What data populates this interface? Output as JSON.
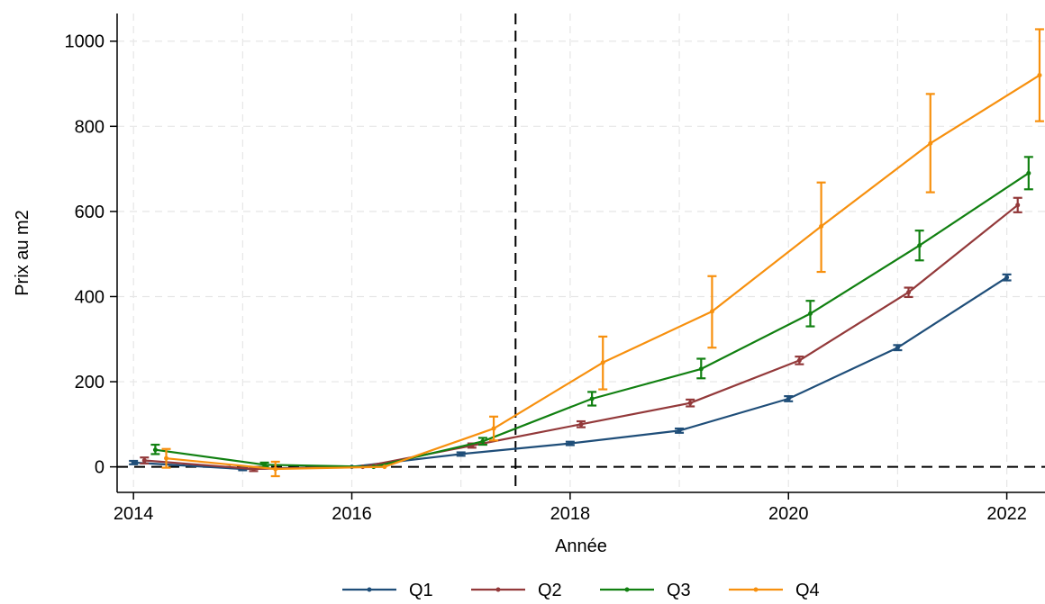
{
  "chart_data": {
    "type": "line",
    "xlabel": "Année",
    "ylabel": "Prix au m2",
    "xlim": [
      2013.85,
      2022.35
    ],
    "ylim": [
      -60,
      1065
    ],
    "xticks": [
      2014,
      2016,
      2018,
      2020,
      2022
    ],
    "xtick_labels": [
      "2014",
      "2016",
      "2018",
      "2020",
      "2022"
    ],
    "yticks": [
      0,
      200,
      400,
      600,
      800,
      1000
    ],
    "ytick_labels": [
      "0",
      "200",
      "400",
      "600",
      "800",
      "1000"
    ],
    "grid": true,
    "legend_position": "bottom",
    "reference_lines": {
      "horizontal": 0,
      "vertical": 2017.5
    },
    "series": [
      {
        "name": "Q1",
        "color": "#1f4e79",
        "x": [
          2014.0,
          2015.0,
          2016.0,
          2017.0,
          2018.0,
          2019.0,
          2020.0,
          2021.0,
          2022.0
        ],
        "y": [
          10,
          -5,
          0,
          30,
          55,
          85,
          160,
          280,
          445
        ],
        "ci": [
          [
            6,
            14
          ],
          [
            -8,
            -2
          ],
          [
            0,
            0
          ],
          [
            26,
            34
          ],
          [
            51,
            59
          ],
          [
            80,
            90
          ],
          [
            154,
            166
          ],
          [
            274,
            286
          ],
          [
            438,
            452
          ]
        ]
      },
      {
        "name": "Q2",
        "color": "#93393a",
        "x": [
          2014.1,
          2015.1,
          2016.1,
          2017.1,
          2018.1,
          2019.1,
          2020.1,
          2021.1,
          2022.1
        ],
        "y": [
          15,
          -5,
          0,
          50,
          100,
          150,
          250,
          410,
          615
        ],
        "ci": [
          [
            8,
            22
          ],
          [
            -10,
            0
          ],
          [
            0,
            0
          ],
          [
            45,
            55
          ],
          [
            93,
            107
          ],
          [
            142,
            158
          ],
          [
            241,
            259
          ],
          [
            399,
            421
          ],
          [
            598,
            632
          ]
        ]
      },
      {
        "name": "Q3",
        "color": "#118011",
        "x": [
          2014.2,
          2015.2,
          2016.2,
          2017.2,
          2018.2,
          2019.2,
          2020.2,
          2021.2,
          2022.2
        ],
        "y": [
          40,
          5,
          0,
          60,
          160,
          230,
          360,
          520,
          690
        ],
        "ci": [
          [
            30,
            52
          ],
          [
            0,
            10
          ],
          [
            0,
            0
          ],
          [
            52,
            68
          ],
          [
            144,
            176
          ],
          [
            208,
            254
          ],
          [
            330,
            390
          ],
          [
            485,
            555
          ],
          [
            652,
            728
          ]
        ]
      },
      {
        "name": "Q4",
        "color": "#f7900e",
        "x": [
          2014.3,
          2015.3,
          2016.3,
          2017.3,
          2018.3,
          2019.3,
          2020.3,
          2021.3,
          2022.3
        ],
        "y": [
          20,
          -5,
          0,
          90,
          245,
          365,
          565,
          760,
          920
        ],
        "ci": [
          [
            -2,
            42
          ],
          [
            -22,
            12
          ],
          [
            0,
            0
          ],
          [
            62,
            118
          ],
          [
            182,
            306
          ],
          [
            280,
            448
          ],
          [
            458,
            668
          ],
          [
            645,
            876
          ],
          [
            812,
            1028
          ]
        ]
      }
    ]
  }
}
